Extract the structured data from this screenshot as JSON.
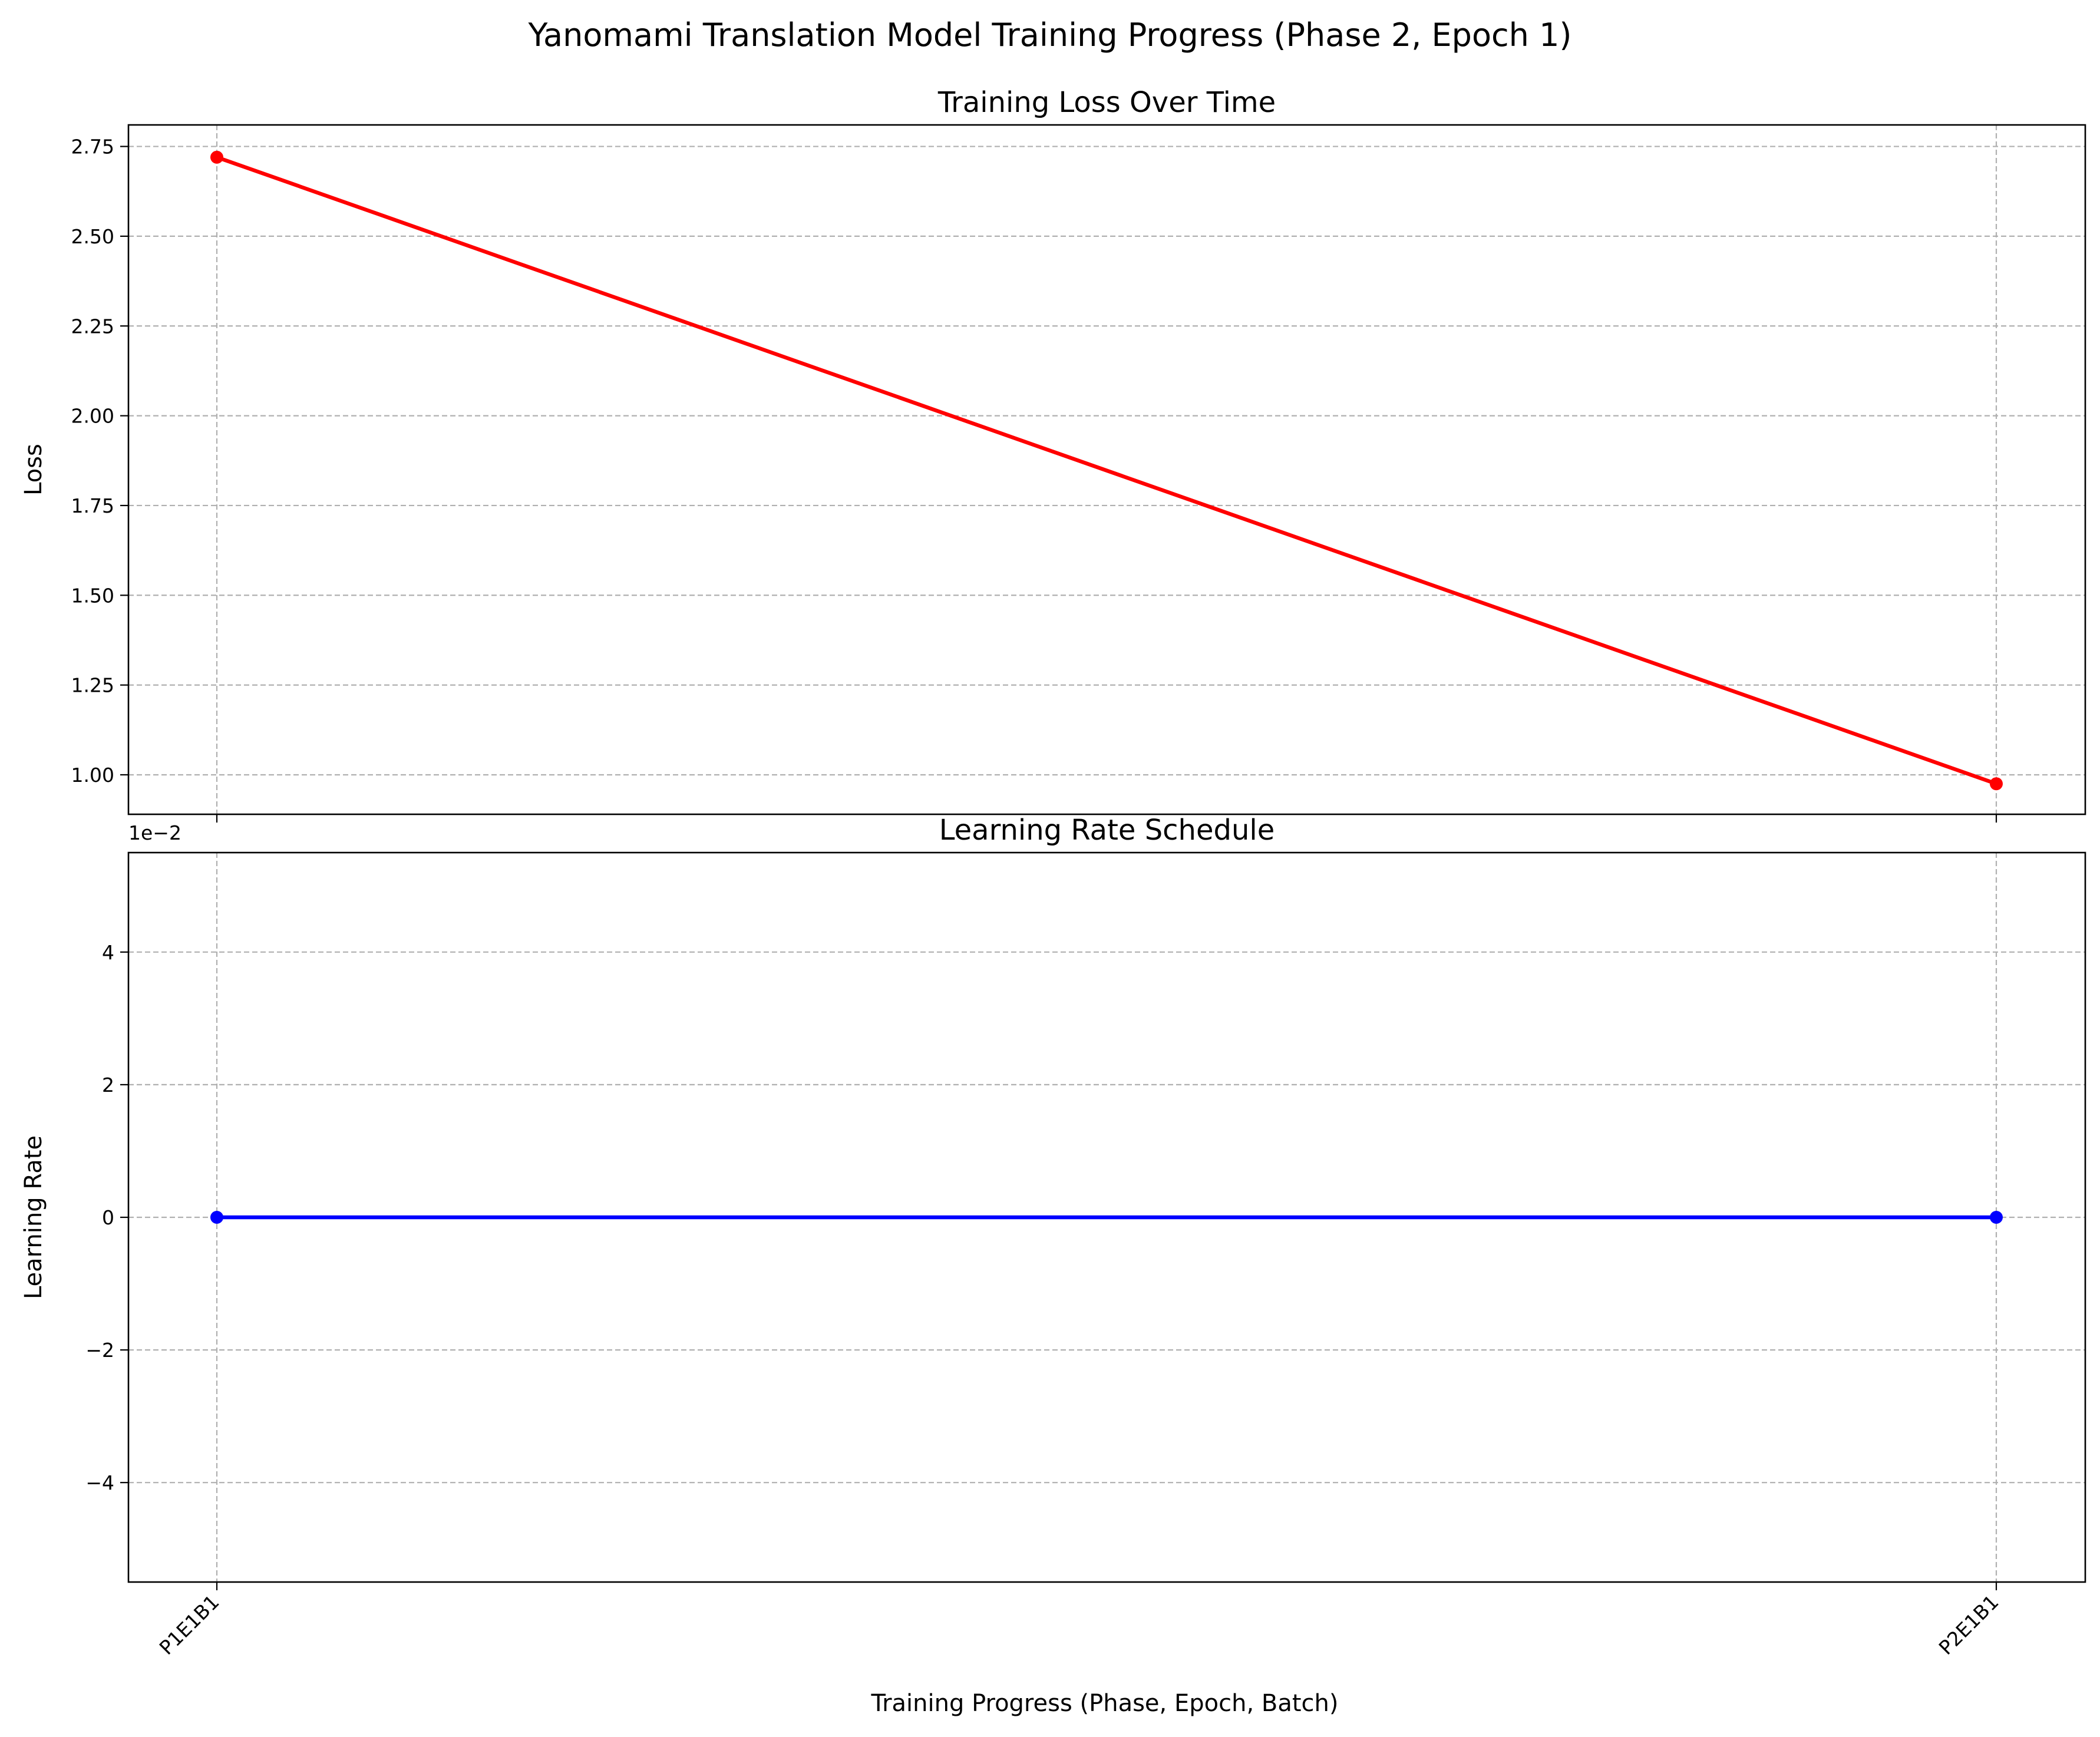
{
  "figure": {
    "title": "Yanomami Translation Model Training Progress (Phase 2, Epoch 1)",
    "xlabel": "Training Progress (Phase, Epoch, Batch)"
  },
  "chart_data": [
    {
      "type": "line",
      "title": "Training Loss Over Time",
      "xlabel": "",
      "ylabel": "Loss",
      "categories": [
        "P1E1B1",
        "P2E1B1"
      ],
      "series": [
        {
          "values": [
            2.72,
            0.975
          ],
          "color": "#ff0000",
          "marker": "circle"
        }
      ],
      "ylim": [
        0.89,
        2.81
      ],
      "yticks": [
        1.0,
        1.25,
        1.5,
        1.75,
        2.0,
        2.25,
        2.5,
        2.75
      ],
      "ytick_labels": [
        "1.00",
        "1.25",
        "1.50",
        "1.75",
        "2.00",
        "2.25",
        "2.50",
        "2.75"
      ],
      "grid": true,
      "show_xtick_labels": false
    },
    {
      "type": "line",
      "title": "Learning Rate Schedule",
      "xlabel": "Training Progress (Phase, Epoch, Batch)",
      "ylabel": "Learning Rate",
      "categories": [
        "P1E1B1",
        "P2E1B1"
      ],
      "series": [
        {
          "values": [
            0,
            0
          ],
          "color": "#0000ff",
          "marker": "circle"
        }
      ],
      "ylim": [
        -0.055,
        0.055
      ],
      "yticks": [
        -0.04,
        -0.02,
        0,
        0.02,
        0.04
      ],
      "ytick_labels": [
        "−4",
        "−2",
        "0",
        "2",
        "4"
      ],
      "offset_text": "1e−2",
      "grid": true,
      "show_xtick_labels": true
    }
  ]
}
